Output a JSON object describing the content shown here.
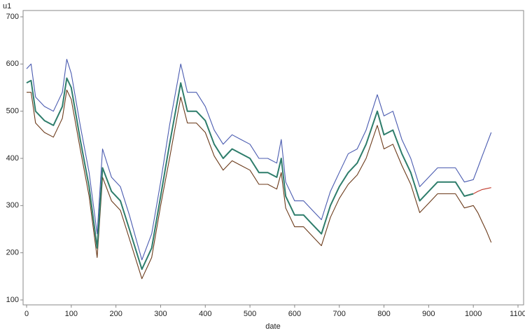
{
  "chart_data": {
    "type": "line",
    "y_label": "u1",
    "x_label": "date",
    "x": [
      0,
      10,
      20,
      40,
      60,
      80,
      90,
      100,
      120,
      140,
      158,
      170,
      190,
      210,
      230,
      258,
      280,
      300,
      320,
      345,
      360,
      380,
      400,
      420,
      440,
      460,
      480,
      500,
      520,
      540,
      560,
      570,
      580,
      600,
      620,
      640,
      660,
      680,
      700,
      720,
      740,
      760,
      785,
      800,
      820,
      840,
      860,
      880,
      900,
      920,
      940,
      960,
      980,
      1000,
      1010,
      1020,
      1030,
      1040
    ],
    "series": [
      {
        "color": "#4a5bb0",
        "values": [
          590,
          600,
          530,
          510,
          500,
          540,
          610,
          580,
          470,
          370,
          240,
          420,
          360,
          340,
          280,
          185,
          240,
          350,
          470,
          600,
          540,
          540,
          510,
          460,
          430,
          450,
          440,
          430,
          400,
          400,
          390,
          440,
          350,
          310,
          310,
          290,
          270,
          330,
          370,
          410,
          420,
          460,
          535,
          490,
          500,
          440,
          400,
          340,
          360,
          380,
          380,
          380,
          350,
          355,
          380,
          405,
          430,
          455
        ]
      },
      {
        "color": "#6b3a1a",
        "values": [
          540,
          540,
          475,
          455,
          445,
          485,
          545,
          525,
          420,
          320,
          190,
          360,
          310,
          290,
          230,
          145,
          190,
          300,
          400,
          530,
          475,
          475,
          455,
          405,
          375,
          395,
          385,
          375,
          345,
          345,
          335,
          370,
          295,
          255,
          255,
          235,
          215,
          275,
          315,
          345,
          365,
          400,
          470,
          420,
          430,
          385,
          345,
          285,
          305,
          325,
          325,
          325,
          295,
          300,
          285,
          265,
          245,
          222
        ]
      },
      {
        "color": "#2e7d6b",
        "values": [
          560,
          565,
          500,
          480,
          470,
          510,
          570,
          550,
          440,
          340,
          210,
          380,
          330,
          310,
          250,
          165,
          210,
          320,
          430,
          560,
          500,
          500,
          480,
          430,
          400,
          420,
          410,
          400,
          370,
          370,
          360,
          400,
          320,
          280,
          280,
          260,
          240,
          300,
          340,
          370,
          390,
          430,
          500,
          450,
          460,
          410,
          370,
          310,
          330,
          350,
          350,
          350,
          320,
          325,
          null,
          null,
          null,
          null
        ]
      },
      {
        "color": "#c0392b",
        "values": [
          null,
          null,
          null,
          null,
          null,
          null,
          null,
          null,
          null,
          null,
          null,
          null,
          null,
          null,
          null,
          null,
          null,
          null,
          null,
          null,
          null,
          null,
          null,
          null,
          null,
          null,
          null,
          null,
          null,
          null,
          null,
          null,
          null,
          null,
          null,
          null,
          null,
          null,
          null,
          null,
          null,
          null,
          null,
          null,
          null,
          null,
          null,
          null,
          null,
          null,
          null,
          null,
          null,
          325,
          330,
          334,
          336,
          338
        ]
      }
    ],
    "xlim": [
      0,
      1100
    ],
    "xticks": [
      0,
      100,
      200,
      300,
      400,
      500,
      600,
      700,
      800,
      900,
      1000,
      1100
    ],
    "ylim": [
      100,
      700
    ],
    "yticks": [
      100,
      200,
      300,
      400,
      500,
      600,
      700
    ]
  }
}
